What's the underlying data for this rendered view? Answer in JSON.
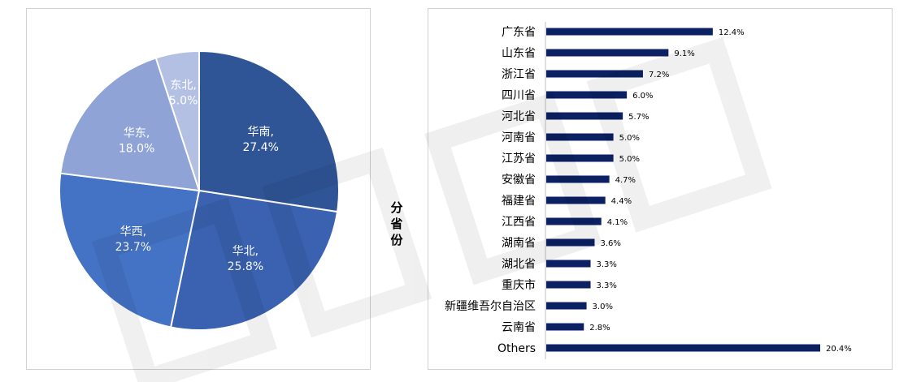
{
  "colors": {
    "pie": [
      "#2f5597",
      "#3a62b1",
      "#4472c4",
      "#8fa3d6",
      "#b4c0e3"
    ],
    "bar": "#0b2163",
    "pie_text": "#ffffff",
    "axis_label": "#000000"
  },
  "chart_data": [
    {
      "type": "pie",
      "slices": [
        {
          "label": "华南",
          "value": 27.4,
          "display": "27.4%"
        },
        {
          "label": "华北",
          "value": 25.8,
          "display": "25.8%"
        },
        {
          "label": "华西",
          "value": 23.7,
          "display": "23.7%"
        },
        {
          "label": "华东",
          "value": 18.0,
          "display": "18.0%"
        },
        {
          "label": "东北",
          "value": 5.0,
          "display": "5.0%"
        }
      ]
    },
    {
      "type": "bar",
      "orientation": "horizontal",
      "ylabel": "分省份",
      "categories": [
        "广东省",
        "山东省",
        "浙江省",
        "四川省",
        "河北省",
        "河南省",
        "江苏省",
        "安徽省",
        "福建省",
        "江西省",
        "湖南省",
        "湖北省",
        "重庆市",
        "新疆维吾尔自治区",
        "云南省",
        "Others"
      ],
      "values": [
        12.4,
        9.1,
        7.2,
        6.0,
        5.7,
        5.0,
        5.0,
        4.7,
        4.4,
        4.1,
        3.6,
        3.3,
        3.3,
        3.0,
        2.8,
        20.4
      ],
      "data_labels": [
        "12.4%",
        "9.1%",
        "7.2%",
        "6.0%",
        "5.7%",
        "5.0%",
        "5.0%",
        "4.7%",
        "4.4%",
        "4.1%",
        "3.6%",
        "3.3%",
        "3.3%",
        "3.0%",
        "2.8%",
        "20.4%"
      ],
      "xlim": [
        0,
        20.4
      ]
    }
  ]
}
